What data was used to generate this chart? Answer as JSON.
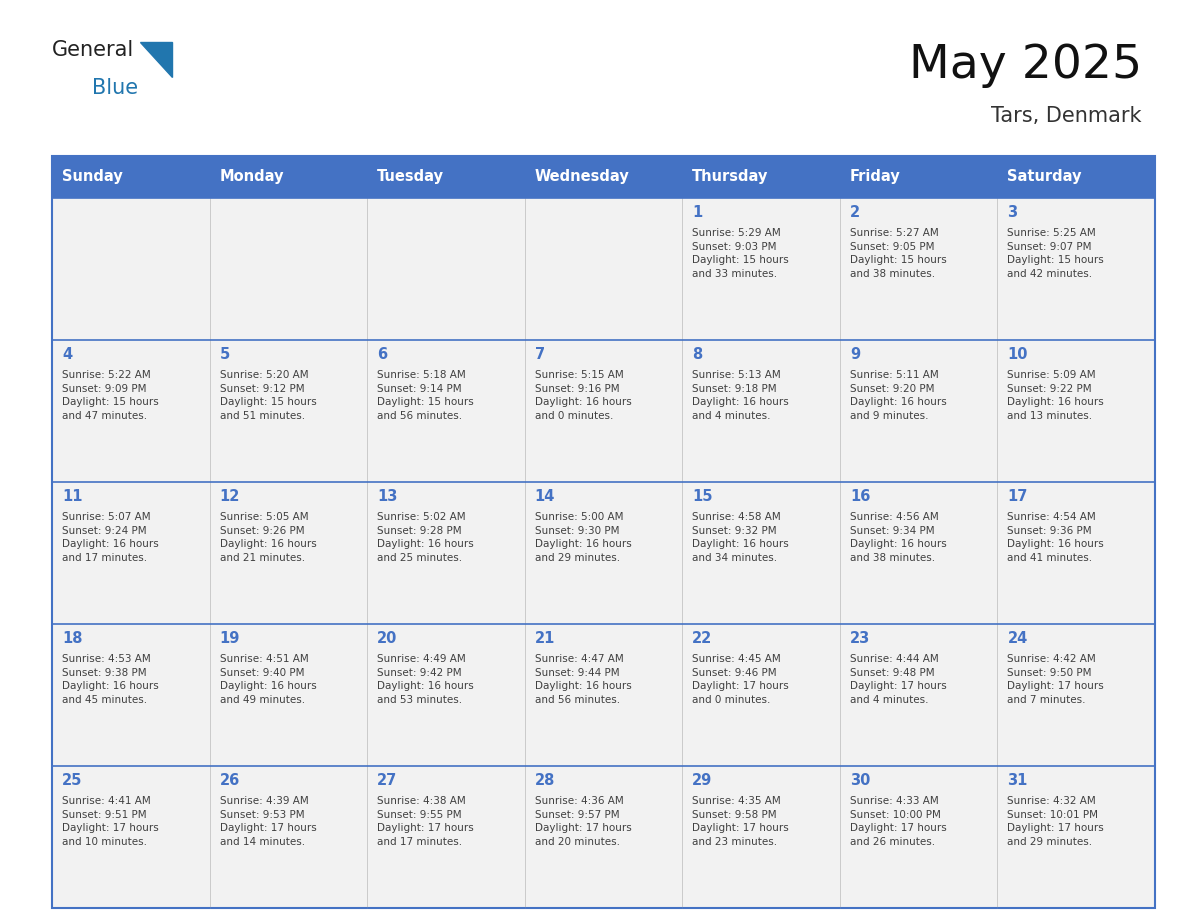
{
  "title": "May 2025",
  "subtitle": "Tars, Denmark",
  "days_of_week": [
    "Sunday",
    "Monday",
    "Tuesday",
    "Wednesday",
    "Thursday",
    "Friday",
    "Saturday"
  ],
  "header_bg": "#4472C4",
  "header_text": "#FFFFFF",
  "cell_bg": "#F2F2F2",
  "border_color": "#4472C4",
  "day_number_color": "#4472C4",
  "text_color": "#404040",
  "logo_text_color": "#222222",
  "logo_blue_color": "#2176AE",
  "title_color": "#111111",
  "subtitle_color": "#333333",
  "calendar": [
    [
      "",
      "",
      "",
      "",
      "1\nSunrise: 5:29 AM\nSunset: 9:03 PM\nDaylight: 15 hours\nand 33 minutes.",
      "2\nSunrise: 5:27 AM\nSunset: 9:05 PM\nDaylight: 15 hours\nand 38 minutes.",
      "3\nSunrise: 5:25 AM\nSunset: 9:07 PM\nDaylight: 15 hours\nand 42 minutes."
    ],
    [
      "4\nSunrise: 5:22 AM\nSunset: 9:09 PM\nDaylight: 15 hours\nand 47 minutes.",
      "5\nSunrise: 5:20 AM\nSunset: 9:12 PM\nDaylight: 15 hours\nand 51 minutes.",
      "6\nSunrise: 5:18 AM\nSunset: 9:14 PM\nDaylight: 15 hours\nand 56 minutes.",
      "7\nSunrise: 5:15 AM\nSunset: 9:16 PM\nDaylight: 16 hours\nand 0 minutes.",
      "8\nSunrise: 5:13 AM\nSunset: 9:18 PM\nDaylight: 16 hours\nand 4 minutes.",
      "9\nSunrise: 5:11 AM\nSunset: 9:20 PM\nDaylight: 16 hours\nand 9 minutes.",
      "10\nSunrise: 5:09 AM\nSunset: 9:22 PM\nDaylight: 16 hours\nand 13 minutes."
    ],
    [
      "11\nSunrise: 5:07 AM\nSunset: 9:24 PM\nDaylight: 16 hours\nand 17 minutes.",
      "12\nSunrise: 5:05 AM\nSunset: 9:26 PM\nDaylight: 16 hours\nand 21 minutes.",
      "13\nSunrise: 5:02 AM\nSunset: 9:28 PM\nDaylight: 16 hours\nand 25 minutes.",
      "14\nSunrise: 5:00 AM\nSunset: 9:30 PM\nDaylight: 16 hours\nand 29 minutes.",
      "15\nSunrise: 4:58 AM\nSunset: 9:32 PM\nDaylight: 16 hours\nand 34 minutes.",
      "16\nSunrise: 4:56 AM\nSunset: 9:34 PM\nDaylight: 16 hours\nand 38 minutes.",
      "17\nSunrise: 4:54 AM\nSunset: 9:36 PM\nDaylight: 16 hours\nand 41 minutes."
    ],
    [
      "18\nSunrise: 4:53 AM\nSunset: 9:38 PM\nDaylight: 16 hours\nand 45 minutes.",
      "19\nSunrise: 4:51 AM\nSunset: 9:40 PM\nDaylight: 16 hours\nand 49 minutes.",
      "20\nSunrise: 4:49 AM\nSunset: 9:42 PM\nDaylight: 16 hours\nand 53 minutes.",
      "21\nSunrise: 4:47 AM\nSunset: 9:44 PM\nDaylight: 16 hours\nand 56 minutes.",
      "22\nSunrise: 4:45 AM\nSunset: 9:46 PM\nDaylight: 17 hours\nand 0 minutes.",
      "23\nSunrise: 4:44 AM\nSunset: 9:48 PM\nDaylight: 17 hours\nand 4 minutes.",
      "24\nSunrise: 4:42 AM\nSunset: 9:50 PM\nDaylight: 17 hours\nand 7 minutes."
    ],
    [
      "25\nSunrise: 4:41 AM\nSunset: 9:51 PM\nDaylight: 17 hours\nand 10 minutes.",
      "26\nSunrise: 4:39 AM\nSunset: 9:53 PM\nDaylight: 17 hours\nand 14 minutes.",
      "27\nSunrise: 4:38 AM\nSunset: 9:55 PM\nDaylight: 17 hours\nand 17 minutes.",
      "28\nSunrise: 4:36 AM\nSunset: 9:57 PM\nDaylight: 17 hours\nand 20 minutes.",
      "29\nSunrise: 4:35 AM\nSunset: 9:58 PM\nDaylight: 17 hours\nand 23 minutes.",
      "30\nSunrise: 4:33 AM\nSunset: 10:00 PM\nDaylight: 17 hours\nand 26 minutes.",
      "31\nSunrise: 4:32 AM\nSunset: 10:01 PM\nDaylight: 17 hours\nand 29 minutes."
    ]
  ]
}
